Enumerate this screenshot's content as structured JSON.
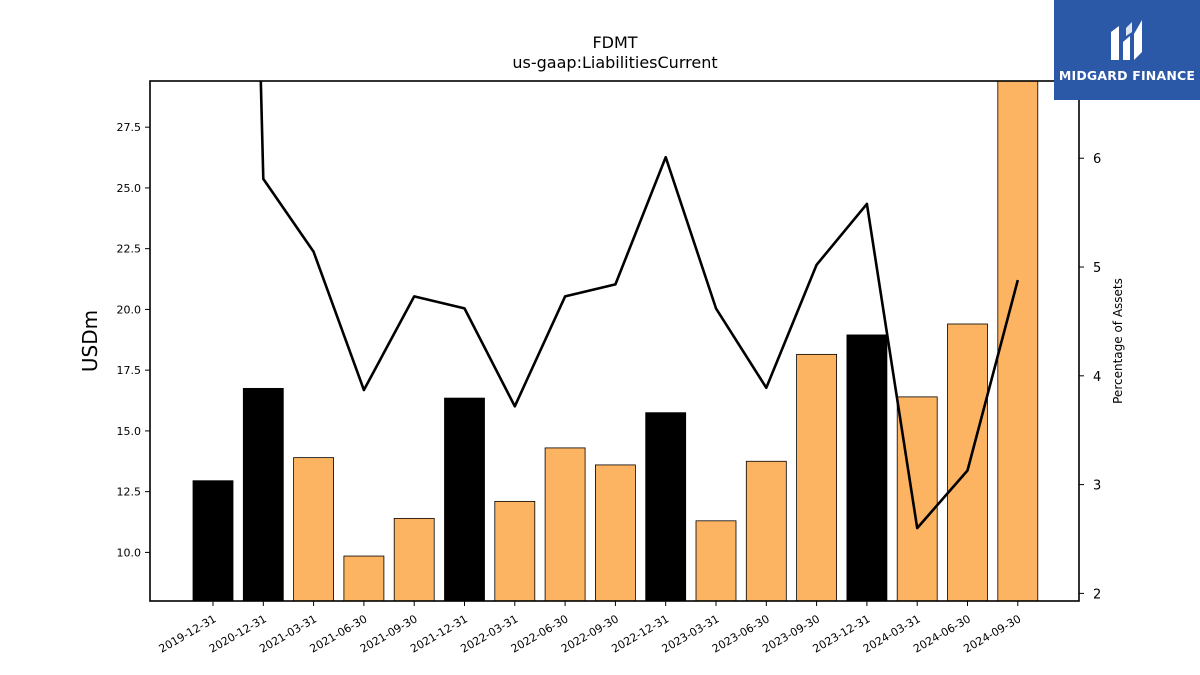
{
  "chart_data": {
    "type": "bar",
    "title": "FDMT",
    "subtitle": "us-gaap:LiabilitiesCurrent",
    "ylabel": "USDm",
    "y2label": "Percentage of Assets",
    "ylim": [
      8.0,
      29.4
    ],
    "y2lim": [
      1.93,
      6.71
    ],
    "yticks": [
      "10.0",
      "12.5",
      "15.0",
      "17.5",
      "20.0",
      "22.5",
      "25.0",
      "27.5"
    ],
    "y2ticks": [
      "2",
      "3",
      "4",
      "5",
      "6"
    ],
    "categories": [
      "2019-12-31",
      "2020-12-31",
      "2021-03-31",
      "2021-06-30",
      "2021-09-30",
      "2021-12-31",
      "2022-03-31",
      "2022-06-30",
      "2022-09-30",
      "2022-12-31",
      "2023-03-31",
      "2023-06-30",
      "2023-09-30",
      "2023-12-31",
      "2024-03-31",
      "2024-06-30",
      "2024-09-30"
    ],
    "series": [
      {
        "kind": "bar",
        "axis": "left",
        "values": [
          12.95,
          16.75,
          13.9,
          9.85,
          11.4,
          16.35,
          12.1,
          14.3,
          13.6,
          15.75,
          11.3,
          13.75,
          18.15,
          18.95,
          16.4,
          19.4,
          29.4
        ],
        "colors": [
          "#000000",
          "#000000",
          "#fdb462",
          "#fdb462",
          "#fdb462",
          "#000000",
          "#fdb462",
          "#fdb462",
          "#fdb462",
          "#000000",
          "#fdb462",
          "#fdb462",
          "#fdb462",
          "#000000",
          "#fdb462",
          "#fdb462",
          "#fdb462"
        ]
      },
      {
        "kind": "line",
        "axis": "right",
        "color": "#000000",
        "values": [
          null,
          5.81,
          5.14,
          3.87,
          4.73,
          4.62,
          3.72,
          4.73,
          4.84,
          6.01,
          4.62,
          3.89,
          5.02,
          5.58,
          2.6,
          3.13,
          4.88
        ],
        "start_value": 6.71
      }
    ],
    "grid": false,
    "legend": "none"
  },
  "logo": {
    "text": "MIDGARD FINANCE"
  }
}
